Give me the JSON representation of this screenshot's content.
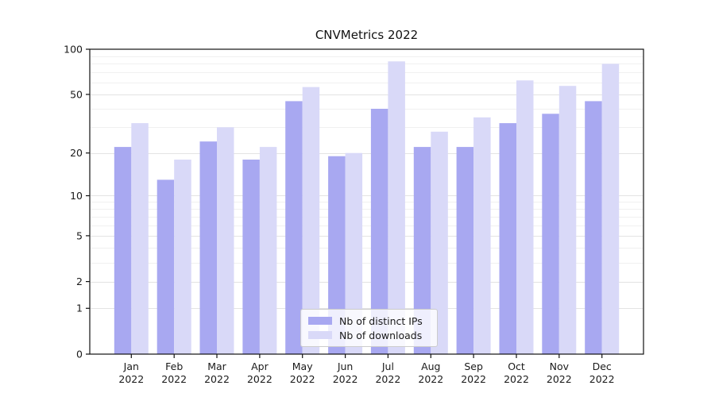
{
  "chart_data": {
    "type": "bar",
    "title": "CNVMetrics 2022",
    "categories": [
      "Jan 2022",
      "Feb 2022",
      "Mar 2022",
      "Apr 2022",
      "May 2022",
      "Jun 2022",
      "Jul 2022",
      "Aug 2022",
      "Sep 2022",
      "Oct 2022",
      "Nov 2022",
      "Dec 2022"
    ],
    "series": [
      {
        "name": "Nb of distinct IPs",
        "color": "#a8a8f1",
        "values": [
          22,
          13,
          24,
          18,
          45,
          19,
          40,
          22,
          22,
          32,
          37,
          45
        ]
      },
      {
        "name": "Nb of downloads",
        "color": "#d9d9f8",
        "values": [
          32,
          18,
          30,
          22,
          56,
          20,
          83,
          28,
          35,
          62,
          57,
          80
        ]
      }
    ],
    "xlabel": "",
    "ylabel": "",
    "yscale": "log1p",
    "ylim": [
      0,
      100
    ],
    "yticks": [
      0,
      1,
      2,
      5,
      10,
      20,
      50,
      100
    ],
    "minor_gridlines": [
      3,
      4,
      6,
      7,
      8,
      9,
      30,
      40,
      60,
      70,
      80,
      90
    ],
    "grid": true,
    "legend_position": "lower center"
  }
}
